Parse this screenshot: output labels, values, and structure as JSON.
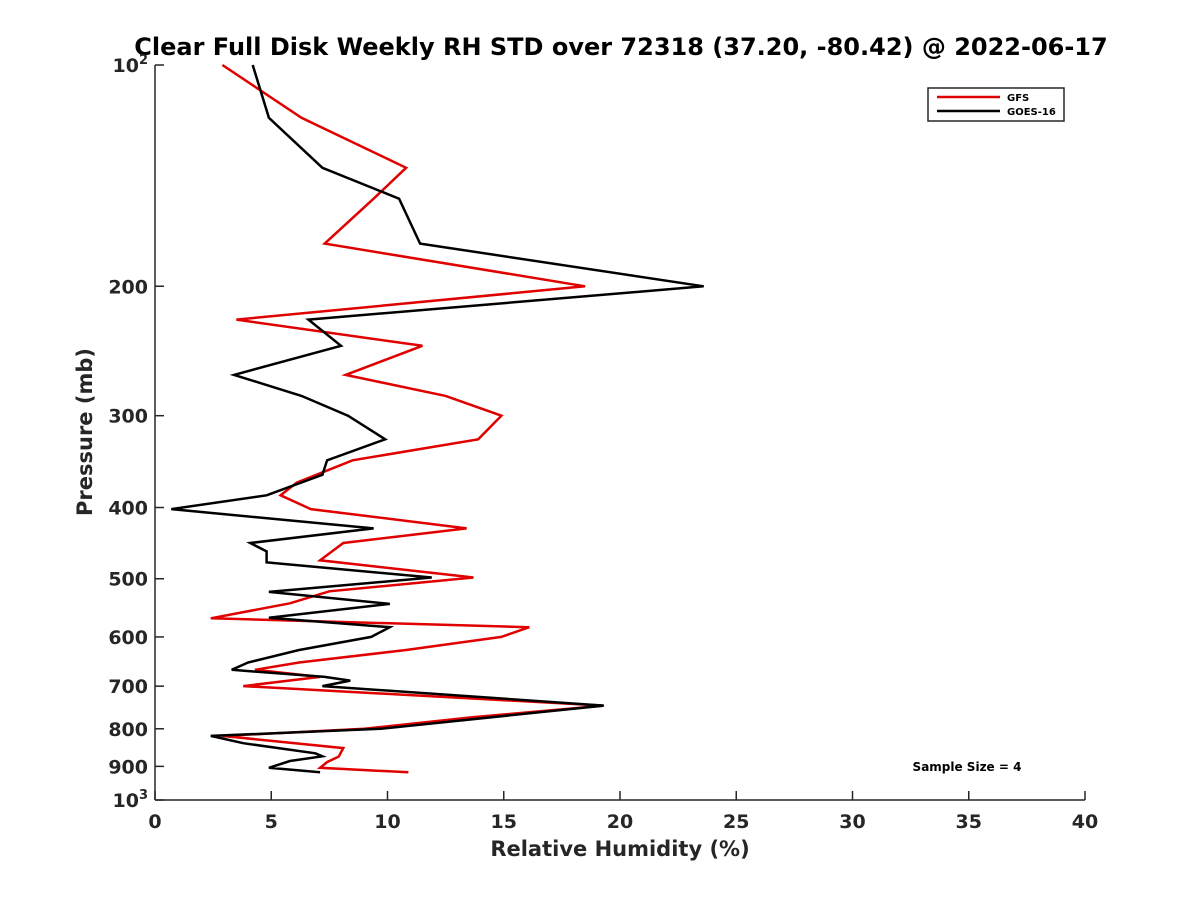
{
  "chart_data": {
    "type": "line",
    "title": "Clear Full Disk Weekly RH STD over 72318 (37.20, -80.42) @ 2022-06-17",
    "xlabel": "Relative Humidity (%)",
    "ylabel": "Pressure (mb)",
    "xlim": [
      0,
      40
    ],
    "ylim": [
      100,
      1000
    ],
    "yscale": "log",
    "y_reversed": true,
    "grid": false,
    "legend_position": "top-right",
    "xticks": [
      "0",
      "5",
      "10",
      "15",
      "20",
      "25",
      "30",
      "35",
      "40"
    ],
    "xtick_values": [
      0,
      5,
      10,
      15,
      20,
      25,
      30,
      35,
      40
    ],
    "yticks": [
      {
        "value": 100,
        "base": "10",
        "exp": "2"
      },
      {
        "value": 200,
        "base": "200",
        "exp": ""
      },
      {
        "value": 300,
        "base": "300",
        "exp": ""
      },
      {
        "value": 400,
        "base": "400",
        "exp": ""
      },
      {
        "value": 500,
        "base": "500",
        "exp": ""
      },
      {
        "value": 600,
        "base": "600",
        "exp": ""
      },
      {
        "value": 700,
        "base": "700",
        "exp": ""
      },
      {
        "value": 800,
        "base": "800",
        "exp": ""
      },
      {
        "value": 900,
        "base": "900",
        "exp": ""
      },
      {
        "value": 1000,
        "base": "10",
        "exp": "3"
      }
    ],
    "annotation": "Sample Size = 4",
    "series": [
      {
        "name": "GFS",
        "color": "#e00000",
        "points": [
          [
            2.9,
            100
          ],
          [
            6.3,
            118
          ],
          [
            10.8,
            138
          ],
          [
            9.4,
            152
          ],
          [
            7.3,
            175
          ],
          [
            18.5,
            200
          ],
          [
            3.5,
            222
          ],
          [
            11.5,
            241
          ],
          [
            8.2,
            264
          ],
          [
            12.5,
            282
          ],
          [
            14.9,
            300
          ],
          [
            13.9,
            323
          ],
          [
            8.5,
            345
          ],
          [
            6.1,
            370
          ],
          [
            5.4,
            385
          ],
          [
            6.7,
            402
          ],
          [
            13.4,
            427
          ],
          [
            8.1,
            447
          ],
          [
            7.1,
            472
          ],
          [
            13.7,
            498
          ],
          [
            7.5,
            520
          ],
          [
            5.8,
            540
          ],
          [
            2.4,
            566
          ],
          [
            16.1,
            582
          ],
          [
            14.9,
            600
          ],
          [
            10.8,
            625
          ],
          [
            6.2,
            650
          ],
          [
            4.3,
            665
          ],
          [
            7.1,
            680
          ],
          [
            3.8,
            700
          ],
          [
            19.3,
            744
          ],
          [
            13.6,
            772
          ],
          [
            9.0,
            800
          ],
          [
            2.9,
            818
          ],
          [
            8.1,
            850
          ],
          [
            7.9,
            873
          ],
          [
            7.4,
            888
          ],
          [
            7.1,
            904
          ],
          [
            10.9,
            917
          ]
        ]
      },
      {
        "name": "GOES-16",
        "color": "#000000",
        "points": [
          [
            4.2,
            100
          ],
          [
            4.9,
            118
          ],
          [
            7.2,
            138
          ],
          [
            10.5,
            152
          ],
          [
            11.4,
            175
          ],
          [
            23.6,
            200
          ],
          [
            6.6,
            222
          ],
          [
            8.0,
            241
          ],
          [
            3.4,
            264
          ],
          [
            6.3,
            282
          ],
          [
            8.3,
            300
          ],
          [
            9.9,
            323
          ],
          [
            7.4,
            345
          ],
          [
            7.2,
            361
          ],
          [
            4.8,
            385
          ],
          [
            0.7,
            402
          ],
          [
            9.4,
            427
          ],
          [
            4.1,
            447
          ],
          [
            4.8,
            459
          ],
          [
            4.8,
            475
          ],
          [
            11.9,
            498
          ],
          [
            4.9,
            521
          ],
          [
            10.1,
            541
          ],
          [
            4.9,
            565
          ],
          [
            10.1,
            582
          ],
          [
            9.3,
            600
          ],
          [
            6.2,
            625
          ],
          [
            4.0,
            650
          ],
          [
            3.3,
            665
          ],
          [
            7.3,
            680
          ],
          [
            8.4,
            688
          ],
          [
            7.2,
            700
          ],
          [
            19.3,
            744
          ],
          [
            9.7,
            800
          ],
          [
            2.4,
            818
          ],
          [
            3.8,
            837
          ],
          [
            6.9,
            864
          ],
          [
            7.2,
            872
          ],
          [
            5.8,
            885
          ],
          [
            4.9,
            904
          ],
          [
            7.1,
            917
          ]
        ]
      }
    ]
  }
}
